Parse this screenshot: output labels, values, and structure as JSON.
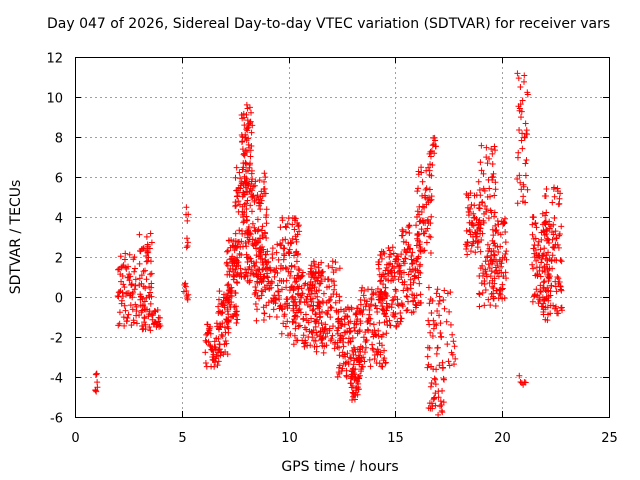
{
  "chart_data": {
    "type": "scatter",
    "title": "Day 047 of 2026, Sidereal Day-to-day VTEC variation (SDTVAR) for receiver vars",
    "xlabel": "GPS time / hours",
    "ylabel": "SDTVAR / TECUs",
    "xlim": [
      0,
      25
    ],
    "ylim": [
      -6,
      12
    ],
    "xticks": [
      0,
      5,
      10,
      15,
      20,
      25
    ],
    "yticks": [
      -6,
      -4,
      -2,
      0,
      2,
      4,
      6,
      8,
      10,
      12
    ],
    "grid": true,
    "marker": "+",
    "color": "#ff0000",
    "series": [
      {
        "name": "SDTVAR",
        "clusters": [
          {
            "x": [
              0.95,
              1.05
            ],
            "y": [
              -4.8,
              -3.8
            ],
            "n": 8
          },
          {
            "x": [
              2.0,
              2.9
            ],
            "y": [
              -1.5,
              2.2
            ],
            "n": 70
          },
          {
            "x": [
              3.0,
              3.6
            ],
            "y": [
              -1.7,
              3.2
            ],
            "n": 70
          },
          {
            "x": [
              3.6,
              4.0
            ],
            "y": [
              -1.5,
              -0.6
            ],
            "n": 20
          },
          {
            "x": [
              5.1,
              5.3
            ],
            "y": [
              -0.3,
              0.7
            ],
            "n": 10
          },
          {
            "x": [
              5.2,
              5.3
            ],
            "y": [
              2.3,
              4.8
            ],
            "n": 8
          },
          {
            "x": [
              6.1,
              6.8
            ],
            "y": [
              -3.5,
              -1.3
            ],
            "n": 50
          },
          {
            "x": [
              6.7,
              7.2
            ],
            "y": [
              -3.0,
              0.3
            ],
            "n": 50
          },
          {
            "x": [
              7.1,
              7.6
            ],
            "y": [
              -1.5,
              3.0
            ],
            "n": 80
          },
          {
            "x": [
              7.5,
              8.1
            ],
            "y": [
              1.0,
              6.5
            ],
            "n": 80
          },
          {
            "x": [
              7.8,
              8.3
            ],
            "y": [
              5.0,
              9.8
            ],
            "n": 60
          },
          {
            "x": [
              8.0,
              9.0
            ],
            "y": [
              0.5,
              6.2
            ],
            "n": 120
          },
          {
            "x": [
              8.4,
              9.6
            ],
            "y": [
              -1.2,
              2.8
            ],
            "n": 90
          },
          {
            "x": [
              9.6,
              10.5
            ],
            "y": [
              -2.0,
              4.0
            ],
            "n": 100
          },
          {
            "x": [
              10.2,
              11.6
            ],
            "y": [
              -2.5,
              1.3
            ],
            "n": 120
          },
          {
            "x": [
              11.0,
              12.4
            ],
            "y": [
              -2.8,
              1.8
            ],
            "n": 110
          },
          {
            "x": [
              12.3,
              13.4
            ],
            "y": [
              -4.0,
              -0.5
            ],
            "n": 110
          },
          {
            "x": [
              12.9,
              13.3
            ],
            "y": [
              -5.2,
              -3.5
            ],
            "n": 30
          },
          {
            "x": [
              13.3,
              14.6
            ],
            "y": [
              -3.5,
              0.5
            ],
            "n": 110
          },
          {
            "x": [
              14.2,
              15.3
            ],
            "y": [
              -1.5,
              2.5
            ],
            "n": 110
          },
          {
            "x": [
              15.3,
              16.2
            ],
            "y": [
              -0.8,
              3.6
            ],
            "n": 90
          },
          {
            "x": [
              16.0,
              16.7
            ],
            "y": [
              2.0,
              6.5
            ],
            "n": 60
          },
          {
            "x": [
              16.6,
              16.9
            ],
            "y": [
              6.0,
              8.0
            ],
            "n": 15
          },
          {
            "x": [
              16.5,
              17.3
            ],
            "y": [
              -6.0,
              0.5
            ],
            "n": 70
          },
          {
            "x": [
              17.4,
              17.8
            ],
            "y": [
              -3.5,
              0.5
            ],
            "n": 15
          },
          {
            "x": [
              18.3,
              19.0
            ],
            "y": [
              2.0,
              5.2
            ],
            "n": 60
          },
          {
            "x": [
              18.9,
              19.7
            ],
            "y": [
              -0.5,
              7.6
            ],
            "n": 90
          },
          {
            "x": [
              19.5,
              20.2
            ],
            "y": [
              -0.2,
              4.0
            ],
            "n": 70
          },
          {
            "x": [
              20.7,
              21.2
            ],
            "y": [
              4.5,
              11.4
            ],
            "n": 40
          },
          {
            "x": [
              20.8,
              21.1
            ],
            "y": [
              -4.5,
              -3.8
            ],
            "n": 6
          },
          {
            "x": [
              21.4,
              22.2
            ],
            "y": [
              -0.5,
              4.0
            ],
            "n": 90
          },
          {
            "x": [
              21.9,
              22.8
            ],
            "y": [
              -1.2,
              5.5
            ],
            "n": 100
          }
        ]
      }
    ]
  }
}
